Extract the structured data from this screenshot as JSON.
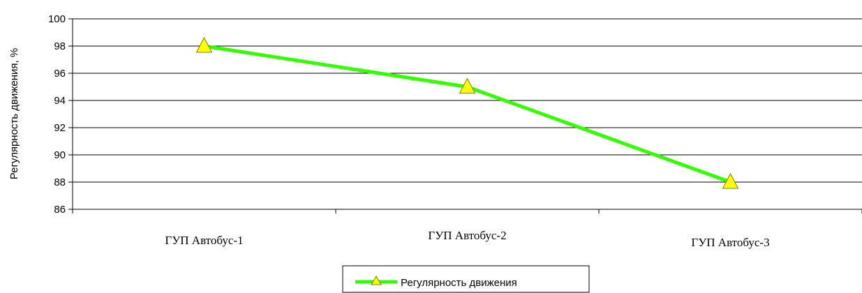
{
  "chart_data": {
    "type": "line",
    "categories": [
      "ГУП Автобус-1",
      "ГУП Автобус-2",
      "ГУП Автобус-3"
    ],
    "series": [
      {
        "name": "Регулярность движения",
        "values": [
          98,
          95,
          88
        ],
        "color": "#33ff00",
        "marker_color": "#ffff00"
      }
    ],
    "ylabel": "Регулярность движения, %",
    "xlabel": "",
    "ylim": [
      86,
      100
    ],
    "yticks": [
      86,
      88,
      90,
      92,
      94,
      96,
      98,
      100
    ],
    "grid": true,
    "legend": "bottom-center"
  }
}
